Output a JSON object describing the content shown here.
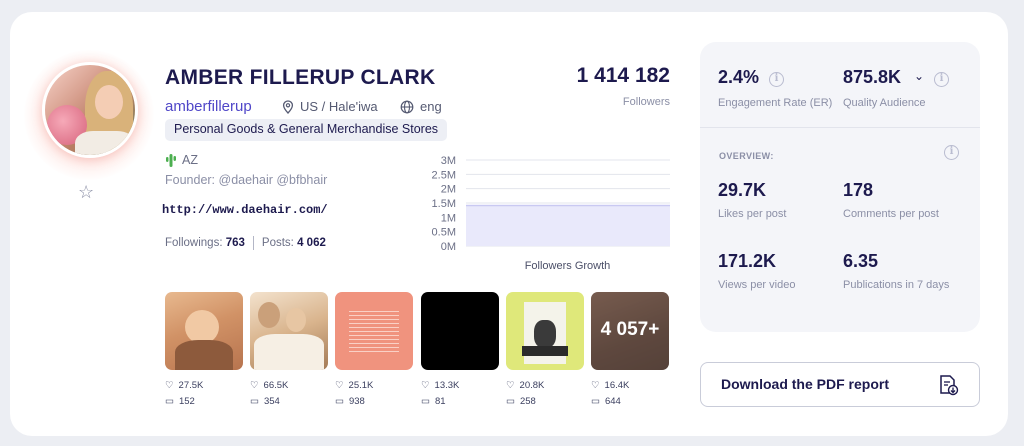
{
  "profile": {
    "name": "AMBER FILLERUP CLARK",
    "handle": "amberfillerup",
    "location": "US / Hale'iwa",
    "language": "eng",
    "category": "Personal Goods & General Merchandise Stores",
    "flag_label": "AZ",
    "founder": "Founder: @daehair @bfbhair",
    "website": "http://www.daehair.com/",
    "followings_label": "Followings:",
    "followings": "763",
    "posts_label": "Posts:",
    "posts": "4 062"
  },
  "followers": {
    "count": "1 414 182",
    "label": "Followers"
  },
  "chart_data": {
    "type": "area",
    "title": "Followers Growth",
    "y_ticks": [
      "3M",
      "2.5M",
      "2M",
      "1.5M",
      "1M",
      "0.5M",
      "0M"
    ],
    "ylim": [
      0,
      3000000
    ],
    "values": [
      1414182,
      1414182
    ]
  },
  "posts": [
    {
      "likes": "27.5K",
      "comments": "152"
    },
    {
      "likes": "66.5K",
      "comments": "354"
    },
    {
      "likes": "25.1K",
      "comments": "938"
    },
    {
      "likes": "13.3K",
      "comments": "81"
    },
    {
      "likes": "20.8K",
      "comments": "258"
    },
    {
      "likes": "16.4K",
      "comments": "644",
      "overlay": "4 057+"
    }
  ],
  "metrics": {
    "er_value": "2.4%",
    "er_label": "Engagement Rate (ER)",
    "qa_value": "875.8K",
    "qa_label": "Quality Audience",
    "overview": "OVERVIEW:",
    "likes_value": "29.7K",
    "likes_label": "Likes per post",
    "comments_value": "178",
    "comments_label": "Comments per post",
    "views_value": "171.2K",
    "views_label": "Views per video",
    "pubs_value": "6.35",
    "pubs_label": "Publications in 7 days"
  },
  "download": {
    "label": "Download the PDF report"
  },
  "colors": {
    "accent": "#4f46c8",
    "text": "#1d1a4e",
    "muted": "#8b8fa6",
    "chart_fill": "#e9e9fb"
  }
}
